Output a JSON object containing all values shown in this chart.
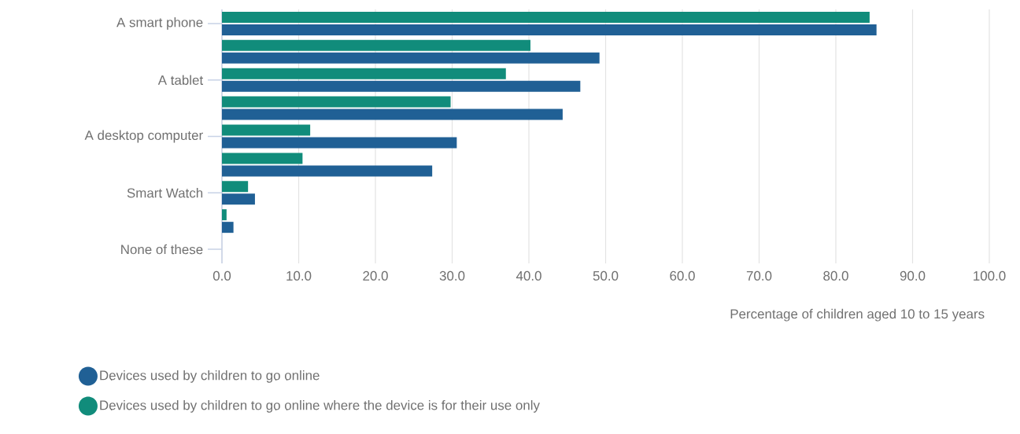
{
  "chart_data": {
    "type": "bar",
    "orientation": "horizontal",
    "categories": [
      "A smart phone",
      null,
      "A tablet",
      null,
      "A desktop computer",
      null,
      "Smart Watch",
      null,
      "None of these"
    ],
    "series": [
      {
        "name": "Devices used by children to go online",
        "color": "#206095",
        "values": [
          85.3,
          49.2,
          46.7,
          44.4,
          30.6,
          27.4,
          4.3,
          1.5,
          0
        ]
      },
      {
        "name": "Devices used by children to go online where the device is for their use only",
        "color": "#118c7b",
        "values": [
          84.4,
          40.2,
          37.0,
          29.8,
          11.5,
          10.5,
          3.4,
          0.6,
          0
        ]
      }
    ],
    "xlabel": "Percentage of children aged 10 to 15 years",
    "xlim": [
      0,
      100
    ],
    "xticks": [
      {
        "value": 0,
        "label": "0.0"
      },
      {
        "value": 10,
        "label": "10.0"
      },
      {
        "value": 20,
        "label": "20.0"
      },
      {
        "value": 30,
        "label": "30.0"
      },
      {
        "value": 40,
        "label": "40.0"
      },
      {
        "value": 50,
        "label": "50.0"
      },
      {
        "value": 60,
        "label": "60.0"
      },
      {
        "value": 70,
        "label": "70.0"
      },
      {
        "value": 80,
        "label": "80.0"
      },
      {
        "value": 90,
        "label": "90.0"
      },
      {
        "value": 100,
        "label": "100.0"
      }
    ],
    "grid": "x",
    "legend": "bottom"
  }
}
